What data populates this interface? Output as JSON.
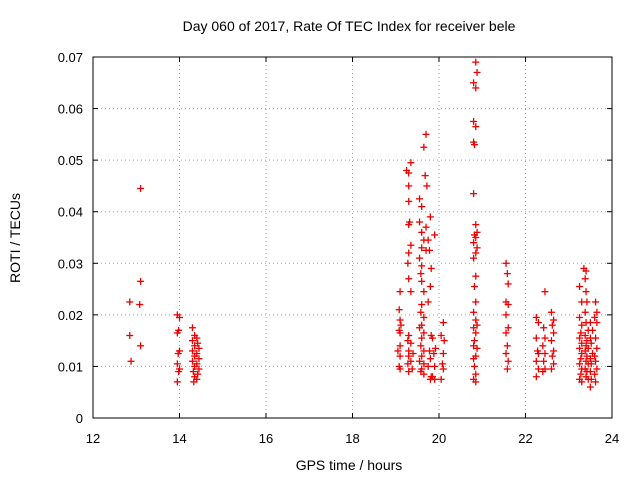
{
  "chart_data": {
    "type": "scatter",
    "title": "Day 060 of 2017, Rate Of TEC Index for receiver bele",
    "xlabel": "GPS time / hours",
    "ylabel": "ROTI / TECUs",
    "xlim": [
      12,
      24
    ],
    "ylim": [
      0,
      0.07
    ],
    "xticks": [
      "12",
      "14",
      "16",
      "18",
      "20",
      "22",
      "24"
    ],
    "yticks": [
      "0",
      "0.01",
      "0.02",
      "0.03",
      "0.04",
      "0.05",
      "0.06",
      "0.07"
    ],
    "grid": true,
    "marker": "plus",
    "color": "#ee0000",
    "series": [
      {
        "points": [
          [
            12.85,
            0.0225
          ],
          [
            12.85,
            0.016
          ],
          [
            12.88,
            0.011
          ],
          [
            13.1,
            0.0445
          ],
          [
            13.1,
            0.0265
          ],
          [
            13.08,
            0.022
          ],
          [
            13.1,
            0.014
          ],
          [
            13.95,
            0.02
          ],
          [
            14.0,
            0.0195
          ],
          [
            13.98,
            0.017
          ],
          [
            13.95,
            0.0165
          ],
          [
            14.0,
            0.013
          ],
          [
            13.97,
            0.0125
          ],
          [
            13.95,
            0.0105
          ],
          [
            14.0,
            0.0095
          ],
          [
            13.98,
            0.009
          ],
          [
            13.95,
            0.007
          ],
          [
            14.3,
            0.0175
          ],
          [
            14.35,
            0.016
          ],
          [
            14.4,
            0.0155
          ],
          [
            14.3,
            0.015
          ],
          [
            14.42,
            0.0145
          ],
          [
            14.35,
            0.014
          ],
          [
            14.45,
            0.0135
          ],
          [
            14.3,
            0.013
          ],
          [
            14.4,
            0.0125
          ],
          [
            14.35,
            0.012
          ],
          [
            14.45,
            0.0115
          ],
          [
            14.3,
            0.011
          ],
          [
            14.4,
            0.0105
          ],
          [
            14.35,
            0.01
          ],
          [
            14.45,
            0.0095
          ],
          [
            14.32,
            0.009
          ],
          [
            14.42,
            0.0085
          ],
          [
            14.35,
            0.008
          ],
          [
            14.4,
            0.0075
          ],
          [
            14.33,
            0.007
          ],
          [
            19.1,
            0.0245
          ],
          [
            19.08,
            0.021
          ],
          [
            19.1,
            0.019
          ],
          [
            19.12,
            0.018
          ],
          [
            19.08,
            0.017
          ],
          [
            19.1,
            0.0165
          ],
          [
            19.1,
            0.014
          ],
          [
            19.05,
            0.013
          ],
          [
            19.1,
            0.012
          ],
          [
            19.08,
            0.01
          ],
          [
            19.1,
            0.0095
          ],
          [
            19.25,
            0.048
          ],
          [
            19.3,
            0.0475
          ],
          [
            19.3,
            0.045
          ],
          [
            19.35,
            0.0495
          ],
          [
            19.3,
            0.042
          ],
          [
            19.32,
            0.038
          ],
          [
            19.3,
            0.0375
          ],
          [
            19.35,
            0.0335
          ],
          [
            19.3,
            0.032
          ],
          [
            19.28,
            0.03
          ],
          [
            19.3,
            0.027
          ],
          [
            19.35,
            0.0245
          ],
          [
            19.3,
            0.016
          ],
          [
            19.28,
            0.015
          ],
          [
            19.35,
            0.0145
          ],
          [
            19.3,
            0.013
          ],
          [
            19.4,
            0.0125
          ],
          [
            19.3,
            0.012
          ],
          [
            19.35,
            0.011
          ],
          [
            19.28,
            0.0105
          ],
          [
            19.38,
            0.0095
          ],
          [
            19.3,
            0.009
          ],
          [
            19.55,
            0.0425
          ],
          [
            19.6,
            0.041
          ],
          [
            19.55,
            0.038
          ],
          [
            19.6,
            0.036
          ],
          [
            19.65,
            0.0345
          ],
          [
            19.6,
            0.033
          ],
          [
            19.55,
            0.031
          ],
          [
            19.6,
            0.0295
          ],
          [
            19.58,
            0.028
          ],
          [
            19.6,
            0.0265
          ],
          [
            19.65,
            0.0245
          ],
          [
            19.6,
            0.022
          ],
          [
            19.58,
            0.0205
          ],
          [
            19.65,
            0.0195
          ],
          [
            19.6,
            0.018
          ],
          [
            19.55,
            0.0175
          ],
          [
            19.65,
            0.0165
          ],
          [
            19.6,
            0.0155
          ],
          [
            19.58,
            0.014
          ],
          [
            19.65,
            0.013
          ],
          [
            19.6,
            0.012
          ],
          [
            19.55,
            0.011
          ],
          [
            19.65,
            0.0105
          ],
          [
            19.6,
            0.0095
          ],
          [
            19.58,
            0.009
          ],
          [
            19.65,
            0.0085
          ],
          [
            19.7,
            0.055
          ],
          [
            19.65,
            0.0525
          ],
          [
            19.68,
            0.047
          ],
          [
            19.72,
            0.045
          ],
          [
            19.7,
            0.037
          ],
          [
            19.75,
            0.0345
          ],
          [
            19.7,
            0.0325
          ],
          [
            19.8,
            0.039
          ],
          [
            19.78,
            0.0325
          ],
          [
            19.82,
            0.029
          ],
          [
            19.8,
            0.0255
          ],
          [
            19.75,
            0.0225
          ],
          [
            19.82,
            0.016
          ],
          [
            19.78,
            0.013
          ],
          [
            19.8,
            0.0115
          ],
          [
            19.75,
            0.01
          ],
          [
            19.82,
            0.008
          ],
          [
            19.8,
            0.0075
          ],
          [
            19.9,
            0.0355
          ],
          [
            19.85,
            0.0155
          ],
          [
            19.92,
            0.0135
          ],
          [
            19.88,
            0.0125
          ],
          [
            19.9,
            0.01
          ],
          [
            19.85,
            0.008
          ],
          [
            19.9,
            0.0075
          ],
          [
            20.1,
            0.0185
          ],
          [
            20.05,
            0.016
          ],
          [
            20.12,
            0.015
          ],
          [
            20.1,
            0.0125
          ],
          [
            20.08,
            0.0105
          ],
          [
            20.1,
            0.0095
          ],
          [
            20.05,
            0.0075
          ],
          [
            20.85,
            0.069
          ],
          [
            20.88,
            0.067
          ],
          [
            20.8,
            0.065
          ],
          [
            20.85,
            0.064
          ],
          [
            20.8,
            0.0575
          ],
          [
            20.85,
            0.0565
          ],
          [
            20.8,
            0.0535
          ],
          [
            20.82,
            0.053
          ],
          [
            20.8,
            0.0435
          ],
          [
            20.85,
            0.0375
          ],
          [
            20.88,
            0.036
          ],
          [
            20.82,
            0.0355
          ],
          [
            20.85,
            0.035
          ],
          [
            20.8,
            0.034
          ],
          [
            20.88,
            0.033
          ],
          [
            20.85,
            0.032
          ],
          [
            20.8,
            0.031
          ],
          [
            20.85,
            0.0275
          ],
          [
            20.82,
            0.0255
          ],
          [
            20.85,
            0.0225
          ],
          [
            20.8,
            0.0205
          ],
          [
            20.85,
            0.019
          ],
          [
            20.88,
            0.018
          ],
          [
            20.8,
            0.0175
          ],
          [
            20.85,
            0.0165
          ],
          [
            20.82,
            0.015
          ],
          [
            20.8,
            0.014
          ],
          [
            20.88,
            0.0135
          ],
          [
            20.85,
            0.012
          ],
          [
            20.8,
            0.0115
          ],
          [
            20.82,
            0.01
          ],
          [
            20.85,
            0.0085
          ],
          [
            20.8,
            0.0075
          ],
          [
            20.85,
            0.007
          ],
          [
            21.55,
            0.03
          ],
          [
            21.58,
            0.028
          ],
          [
            21.6,
            0.026
          ],
          [
            21.55,
            0.0225
          ],
          [
            21.6,
            0.022
          ],
          [
            21.55,
            0.02
          ],
          [
            21.6,
            0.0175
          ],
          [
            21.55,
            0.0165
          ],
          [
            21.58,
            0.014
          ],
          [
            21.55,
            0.0125
          ],
          [
            21.6,
            0.011
          ],
          [
            21.58,
            0.0095
          ],
          [
            22.25,
            0.0195
          ],
          [
            22.3,
            0.0185
          ],
          [
            22.25,
            0.0155
          ],
          [
            22.28,
            0.013
          ],
          [
            22.3,
            0.0125
          ],
          [
            22.25,
            0.011
          ],
          [
            22.3,
            0.0095
          ],
          [
            22.25,
            0.008
          ],
          [
            22.45,
            0.0245
          ],
          [
            22.42,
            0.0175
          ],
          [
            22.45,
            0.0155
          ],
          [
            22.4,
            0.014
          ],
          [
            22.45,
            0.0125
          ],
          [
            22.42,
            0.011
          ],
          [
            22.45,
            0.0095
          ],
          [
            22.4,
            0.009
          ],
          [
            22.6,
            0.0205
          ],
          [
            22.65,
            0.019
          ],
          [
            22.62,
            0.018
          ],
          [
            22.65,
            0.0165
          ],
          [
            22.6,
            0.015
          ],
          [
            22.65,
            0.013
          ],
          [
            22.62,
            0.012
          ],
          [
            22.65,
            0.0105
          ],
          [
            22.6,
            0.0095
          ],
          [
            23.25,
            0.0255
          ],
          [
            23.3,
            0.0225
          ],
          [
            23.25,
            0.0195
          ],
          [
            23.3,
            0.018
          ],
          [
            23.28,
            0.0165
          ],
          [
            23.25,
            0.0155
          ],
          [
            23.3,
            0.0145
          ],
          [
            23.25,
            0.0135
          ],
          [
            23.3,
            0.0125
          ],
          [
            23.28,
            0.0115
          ],
          [
            23.25,
            0.0105
          ],
          [
            23.3,
            0.0095
          ],
          [
            23.28,
            0.0085
          ],
          [
            23.25,
            0.0075
          ],
          [
            23.3,
            0.007
          ],
          [
            23.35,
            0.029
          ],
          [
            23.4,
            0.0285
          ],
          [
            23.38,
            0.027
          ],
          [
            23.4,
            0.0245
          ],
          [
            23.42,
            0.0225
          ],
          [
            23.38,
            0.0205
          ],
          [
            23.4,
            0.0185
          ],
          [
            23.45,
            0.017
          ],
          [
            23.38,
            0.016
          ],
          [
            23.42,
            0.015
          ],
          [
            23.4,
            0.014
          ],
          [
            23.45,
            0.0135
          ],
          [
            23.38,
            0.013
          ],
          [
            23.42,
            0.012
          ],
          [
            23.4,
            0.011
          ],
          [
            23.45,
            0.0105
          ],
          [
            23.38,
            0.0095
          ],
          [
            23.42,
            0.009
          ],
          [
            23.4,
            0.008
          ],
          [
            23.45,
            0.0075
          ],
          [
            23.5,
            0.0185
          ],
          [
            23.55,
            0.017
          ],
          [
            23.5,
            0.0155
          ],
          [
            23.52,
            0.0145
          ],
          [
            23.55,
            0.0125
          ],
          [
            23.5,
            0.0115
          ],
          [
            23.52,
            0.0105
          ],
          [
            23.5,
            0.009
          ],
          [
            23.52,
            0.0075
          ],
          [
            23.5,
            0.006
          ],
          [
            23.62,
            0.0225
          ],
          [
            23.65,
            0.0205
          ],
          [
            23.6,
            0.0195
          ],
          [
            23.65,
            0.0185
          ],
          [
            23.62,
            0.0155
          ],
          [
            23.65,
            0.0135
          ],
          [
            23.6,
            0.012
          ],
          [
            23.62,
            0.011
          ],
          [
            23.65,
            0.0095
          ],
          [
            23.6,
            0.0085
          ],
          [
            23.62,
            0.007
          ]
        ]
      }
    ]
  }
}
